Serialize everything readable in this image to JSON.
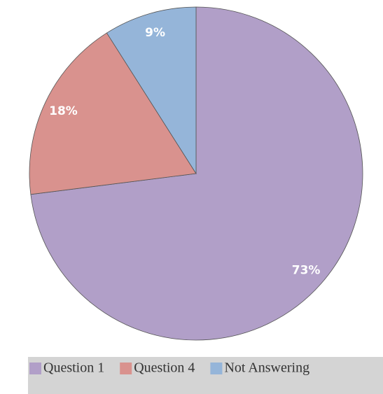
{
  "chart_data": {
    "type": "pie",
    "categories": [
      "Question 1",
      "Question 4",
      "Not Answering"
    ],
    "values": [
      73,
      18,
      9
    ],
    "value_labels": [
      "73%",
      "18%",
      "9%"
    ],
    "colors": [
      "#b19fc8",
      "#d9928e",
      "#95b5d9"
    ],
    "legend": "bottom"
  }
}
